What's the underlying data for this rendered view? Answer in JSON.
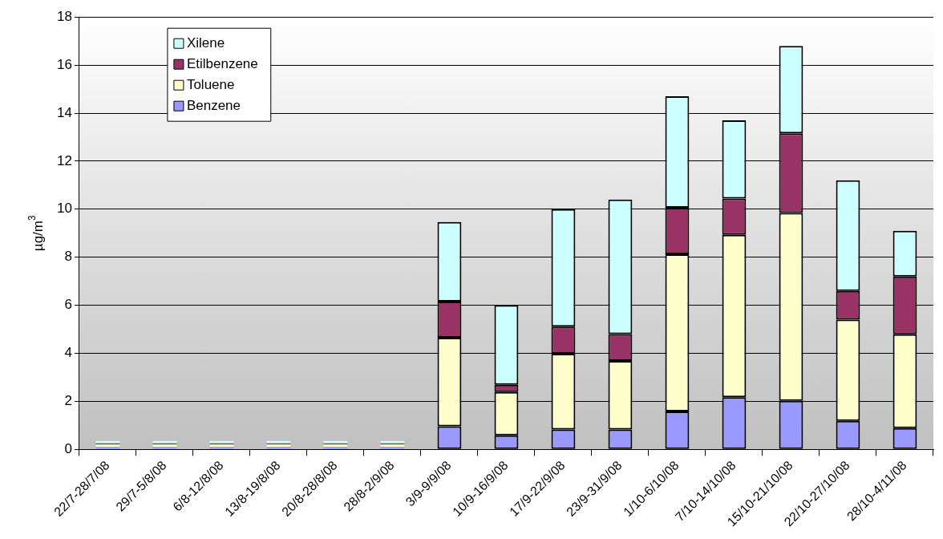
{
  "chart_data": {
    "type": "bar",
    "stacked": true,
    "ylabel": "µg/m$^{3}$",
    "categories": [
      "22/7-28/7/08",
      "29/7-5/8/08",
      "6/8-12/8/08",
      "13/8-19/8/08",
      "20/8-28/8/08",
      "28/8-2/9/08",
      "3/9-9/9/08",
      "10/9-16/9/08",
      "17/9-22/9/08",
      "23/9-31/9/08",
      "1/10-6/10/08",
      "7/10-14/10/08",
      "15/10-21/10/08",
      "22/10-27/10/08",
      "28/10-4/11/08"
    ],
    "series": [
      {
        "name": "Benzene",
        "color": "#9999ff",
        "values": [
          0.1,
          0.1,
          0.1,
          0.1,
          0.1,
          0.1,
          0.96,
          0.59,
          0.83,
          0.83,
          1.58,
          2.17,
          2.02,
          1.19,
          0.89
        ]
      },
      {
        "name": "Toluene",
        "color": "#ffffcc",
        "values": [
          0.1,
          0.1,
          0.1,
          0.1,
          0.1,
          0.1,
          3.69,
          1.8,
          3.15,
          2.85,
          6.54,
          6.76,
          7.82,
          4.21,
          3.9
        ]
      },
      {
        "name": "Etilbenzene",
        "color": "#993366",
        "values": [
          0.05,
          0.05,
          0.05,
          0.05,
          0.05,
          0.05,
          1.5,
          0.3,
          1.13,
          1.12,
          1.94,
          1.51,
          3.32,
          1.2,
          2.41
        ]
      },
      {
        "name": "Xilene",
        "color": "#ccffff",
        "values": [
          0.1,
          0.1,
          0.1,
          0.1,
          0.1,
          0.1,
          3.32,
          3.31,
          4.89,
          5.6,
          4.64,
          3.26,
          3.64,
          4.6,
          1.9
        ]
      }
    ],
    "ylim": [
      0,
      18
    ],
    "yticks": [
      0,
      2,
      4,
      6,
      8,
      10,
      12,
      14,
      16,
      18
    ],
    "grid": "y",
    "legend": "top left"
  }
}
